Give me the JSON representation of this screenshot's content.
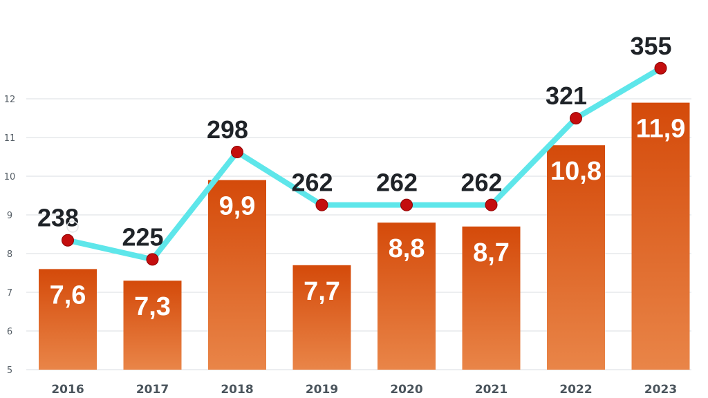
{
  "chart_data": {
    "type": "bar",
    "categories": [
      "2016",
      "2017",
      "2018",
      "2019",
      "2020",
      "2021",
      "2022",
      "2023"
    ],
    "series": [
      {
        "type": "bar",
        "values": [
          7.6,
          7.3,
          9.9,
          7.7,
          8.8,
          8.7,
          10.8,
          11.9
        ],
        "labels": [
          "7,6",
          "7,3",
          "9,9",
          "7,7",
          "8,8",
          "8,7",
          "10,8",
          "11,9"
        ]
      },
      {
        "type": "line",
        "values": [
          238,
          225,
          298,
          262,
          262,
          262,
          321,
          355
        ],
        "labels": [
          "238",
          "225",
          "298",
          "262",
          "262",
          "262",
          "321",
          "355"
        ]
      }
    ],
    "yticks": [
      "5",
      "6",
      "7",
      "8",
      "9",
      "10",
      "11",
      "12"
    ],
    "ylim": [
      5,
      12.5
    ],
    "secondary_ylim": [
      150,
      400
    ],
    "grid": true,
    "legend": "none",
    "title": "",
    "xlabel": "",
    "ylabel": "",
    "colors": {
      "bar_top": "#d44a0a",
      "bar_bottom": "#e98548",
      "line": "#5ee6ea",
      "marker": "#c40e0e",
      "marker_edge": "#8e0000"
    }
  }
}
